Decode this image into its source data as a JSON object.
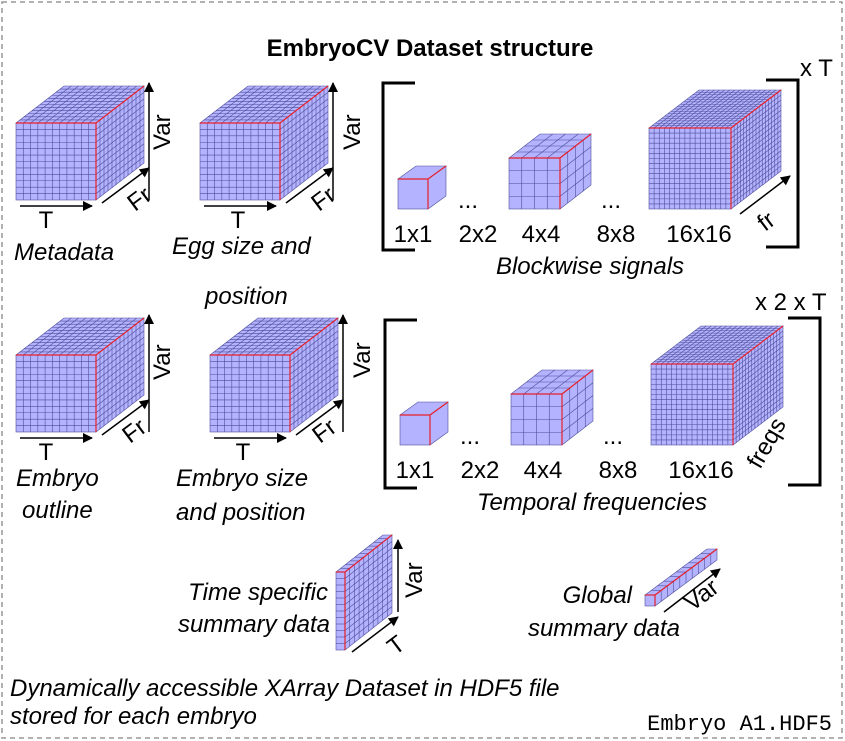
{
  "title": "EmbryoCV Dataset structure",
  "colors": {
    "face": "#b3b3ff",
    "grid": "#4d4d99",
    "edge": "#e8202a",
    "border": "#999999"
  },
  "cubes": [
    {
      "label": "Metadata",
      "axes": [
        "T",
        "Fr",
        "Var"
      ]
    },
    {
      "label": "Egg size and",
      "label2": "position",
      "axes": [
        "T",
        "Fr",
        "Var"
      ]
    },
    {
      "label": "Embryo",
      "label2": "outline",
      "axes": [
        "T",
        "Fr",
        "Var"
      ]
    },
    {
      "label": "Embryo size",
      "label2": "and position",
      "axes": [
        "T",
        "Fr",
        "Var"
      ]
    }
  ],
  "blockwise": {
    "label": "Blockwise signals",
    "multiplier": "x T",
    "axis": "fr",
    "sizes": [
      "1x1",
      "2x2",
      "4x4",
      "8x8",
      "16x16"
    ],
    "ellipsis": "..."
  },
  "temporal": {
    "label": "Temporal frequencies",
    "multiplier": "x 2 x T",
    "axis": "freqs",
    "sizes": [
      "1x1",
      "2x2",
      "4x4",
      "8x8",
      "16x16"
    ],
    "ellipsis": "..."
  },
  "time_specific": {
    "label": "Time specific",
    "label2": "summary data",
    "axes": [
      "T",
      "Var"
    ]
  },
  "global": {
    "label": "Global",
    "label2": "summary data",
    "axis": "Var"
  },
  "footer": {
    "line1": "Dynamically accessible XArray Dataset in HDF5 file",
    "line2": "stored for each embryo",
    "filename": "Embryo A1.HDF5"
  }
}
